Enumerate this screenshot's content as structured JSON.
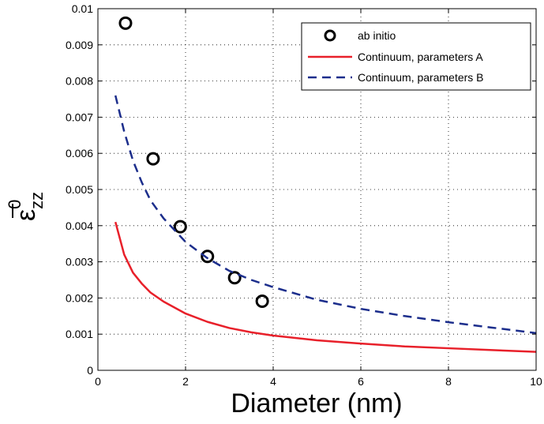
{
  "chart_data": {
    "type": "line",
    "title": "",
    "xlabel": "Diameter (nm)",
    "ylabel": {
      "symbol": "ε",
      "sub": "zz",
      "sup": "0"
    },
    "xlim": [
      0,
      10
    ],
    "ylim": [
      0,
      0.01
    ],
    "xticks": [
      "0",
      "2",
      "4",
      "6",
      "8",
      "10"
    ],
    "yticks": [
      "0",
      "0.001",
      "0.002",
      "0.003",
      "0.004",
      "0.005",
      "0.006",
      "0.007",
      "0.008",
      "0.009",
      "0.01"
    ],
    "grid": true,
    "legend_position": "top-right",
    "series": [
      {
        "name": "ab initio",
        "style": "markers",
        "marker": "circle",
        "color": "#000000",
        "x": [
          0.63,
          1.26,
          1.88,
          2.5,
          3.12,
          3.75
        ],
        "y": [
          0.0096,
          0.00585,
          0.00397,
          0.00315,
          0.00256,
          0.00191
        ]
      },
      {
        "name": "Continuum, parameters A",
        "style": "solid",
        "color": "#e8202a",
        "x": [
          0.4,
          0.6,
          0.8,
          1.0,
          1.2,
          1.5,
          2.0,
          2.5,
          3.0,
          3.5,
          4.0,
          5.0,
          6.0,
          7.0,
          8.0,
          9.0,
          10.0
        ],
        "y": [
          0.0041,
          0.0032,
          0.0027,
          0.0024,
          0.00215,
          0.0019,
          0.00157,
          0.00134,
          0.00117,
          0.00105,
          0.00096,
          0.00083,
          0.00074,
          0.00066,
          0.00061,
          0.00056,
          0.00051
        ]
      },
      {
        "name": "Continuum, parameters B",
        "style": "dashed",
        "color": "#1c2e8c",
        "x": [
          0.4,
          0.6,
          0.8,
          1.0,
          1.2,
          1.5,
          2.0,
          2.5,
          3.0,
          3.5,
          4.0,
          5.0,
          6.0,
          7.0,
          8.0,
          9.0,
          10.0
        ],
        "y": [
          0.0076,
          0.0066,
          0.0058,
          0.0052,
          0.0047,
          0.0042,
          0.00355,
          0.0031,
          0.00275,
          0.0025,
          0.0023,
          0.00195,
          0.0017,
          0.0015,
          0.00133,
          0.00118,
          0.00103
        ]
      }
    ]
  }
}
